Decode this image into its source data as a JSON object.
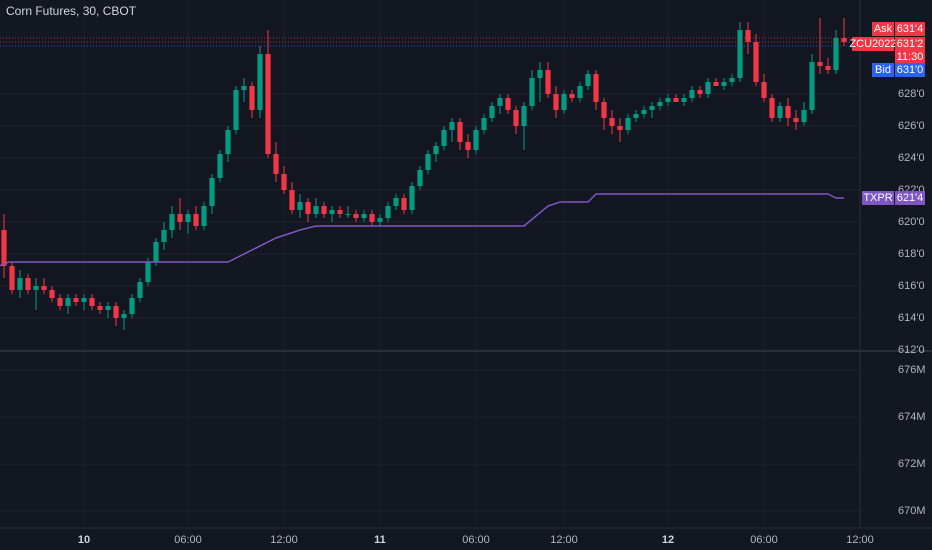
{
  "chart_data": [
    {
      "type": "candlestick",
      "title": "Corn Futures, 30, CBOT",
      "up_color": "#089981",
      "down_color": "#f23645",
      "open": [
        619.5,
        617.25,
        615.75,
        616.5,
        615.75,
        616,
        615.75,
        615.25,
        614.75,
        615.25,
        615,
        615.25,
        614.75,
        614.5,
        614.75,
        614,
        614.25,
        615.25,
        616.25,
        617.5,
        618.75,
        619.5,
        620.5,
        620,
        620.5,
        619.75,
        621,
        622.75,
        624.25,
        625.75,
        628.25,
        628.5,
        627,
        630.5,
        624.25,
        623,
        622,
        620.75,
        621.25,
        620.5,
        621,
        620.5,
        620.75,
        620.5,
        620.5,
        620.25,
        620.5,
        620,
        620.25,
        621,
        621.5,
        620.75,
        622.25,
        623.25,
        624.25,
        624.75,
        625.75,
        626.25,
        625,
        624.5,
        625.75,
        626.5,
        627.25,
        627.75,
        627,
        626,
        627.25,
        629,
        629.5,
        628,
        627,
        628,
        627.75,
        628.5,
        629.25,
        627.5,
        626.5,
        626,
        625.75,
        626.5,
        626.75,
        627,
        627.25,
        627.5,
        627.75,
        627.5,
        627.75,
        628.25,
        628,
        628.75,
        628.5,
        628.75,
        629,
        632,
        631.25,
        628.75,
        627.75,
        626.5,
        627.25,
        626.5,
        626.25,
        627,
        630,
        629.75,
        629.5,
        631.5
      ],
      "high": [
        620.5,
        617.5,
        617,
        616.75,
        616.5,
        616.5,
        616,
        615.5,
        615.5,
        615.5,
        615.5,
        615.5,
        615,
        615,
        615,
        614.5,
        615.5,
        616.5,
        617.75,
        619,
        620,
        621,
        621.5,
        620.75,
        621,
        621.25,
        623,
        624.5,
        626,
        628.5,
        629,
        628.75,
        631,
        632,
        625,
        623.5,
        622.5,
        621.75,
        621.5,
        621.5,
        621.25,
        621,
        621,
        621,
        620.75,
        620.75,
        620.75,
        620.5,
        621.25,
        621.75,
        621.75,
        622.5,
        623.5,
        624.5,
        625,
        626,
        626.5,
        626.5,
        625.5,
        626,
        626.75,
        627.5,
        628,
        628,
        627.25,
        627.5,
        629.5,
        630,
        630,
        628.5,
        628.25,
        628.25,
        628.75,
        629.5,
        629.5,
        627.75,
        627,
        626.5,
        626.75,
        627,
        627.25,
        627.5,
        627.75,
        628,
        628,
        628,
        628.5,
        628.5,
        629,
        629,
        629,
        629.25,
        632.5,
        632.5,
        631.75,
        629.25,
        628,
        627.5,
        627.75,
        627,
        627.5,
        630.5,
        632.75,
        630.25,
        632,
        632.75
      ],
      "low": [
        616.5,
        615.5,
        615.25,
        615.5,
        614.5,
        615.5,
        615,
        614.5,
        614.25,
        614.75,
        614.5,
        614.5,
        614.25,
        614,
        613.5,
        613.25,
        614,
        615,
        616,
        617.25,
        618.25,
        619,
        619.5,
        619.25,
        619.5,
        619.5,
        620.5,
        622.5,
        623.75,
        625.5,
        627.5,
        626.5,
        626.5,
        624,
        622.5,
        621.75,
        620.5,
        620.25,
        620,
        620.25,
        620.25,
        620,
        620.25,
        620.25,
        620,
        620,
        619.75,
        619.75,
        620,
        620.75,
        620.5,
        620.5,
        622,
        623,
        623.75,
        624.5,
        625,
        624.5,
        624,
        624.25,
        625.5,
        626.25,
        626.75,
        626.75,
        625.5,
        624.5,
        627,
        627.5,
        627.75,
        626.5,
        626.75,
        627.5,
        627.5,
        628.25,
        627,
        625.75,
        625.5,
        625,
        625.5,
        626.25,
        626.5,
        626.5,
        627,
        627.25,
        627.5,
        627.25,
        627.5,
        627.75,
        627.75,
        628.5,
        628.25,
        628.5,
        628.75,
        630.5,
        628.5,
        627.5,
        626.25,
        626.25,
        626,
        625.75,
        626,
        626.75,
        629.25,
        629.25,
        629.25,
        631
      ],
      "close": [
        617.25,
        615.75,
        616.5,
        615.75,
        616,
        615.75,
        615.25,
        614.75,
        615.25,
        615,
        615.25,
        614.75,
        614.5,
        614.75,
        614,
        614.25,
        615.25,
        616.25,
        617.5,
        618.75,
        619.5,
        620.5,
        620,
        620.5,
        619.75,
        621,
        622.75,
        624.25,
        625.75,
        628.25,
        628.5,
        627,
        630.5,
        624.25,
        623,
        622,
        620.75,
        621.25,
        620.5,
        621,
        620.5,
        620.75,
        620.5,
        620.5,
        620.25,
        620.5,
        620,
        620.25,
        621,
        621.5,
        620.75,
        622.25,
        623.25,
        624.25,
        624.75,
        625.75,
        626.25,
        625,
        624.5,
        625.75,
        626.5,
        627.25,
        627.75,
        627,
        626,
        627.25,
        629,
        629.5,
        628,
        627,
        628,
        627.75,
        628.5,
        629.25,
        627.5,
        626.5,
        626,
        625.75,
        626.5,
        626.75,
        627,
        627.25,
        627.5,
        627.75,
        627.5,
        627.75,
        628.25,
        628,
        628.75,
        628.5,
        628.75,
        629,
        632,
        631.25,
        628.75,
        627.75,
        626.5,
        627.25,
        626.5,
        626.25,
        627,
        630,
        629.75,
        629.5,
        631.5,
        631.25
      ],
      "series": [
        {
          "name": "TXPR",
          "color": "#7e57c2",
          "x": [
            -0.6,
            0.6,
            28,
            31,
            34,
            37,
            39,
            65,
            68,
            69.5,
            71.5,
            73,
            74,
            103,
            104,
            105
          ],
          "values": [
            617.25,
            617.5,
            617.5,
            618.25,
            619,
            619.5,
            619.75,
            619.75,
            621,
            621.25,
            621.25,
            621.25,
            621.75,
            621.75,
            621.5,
            621.5
          ],
          "value_labels": [
            null,
            null,
            null,
            null,
            null,
            null,
            null,
            null,
            null,
            null,
            null,
            null,
            null,
            null,
            null,
            "621'4"
          ]
        }
      ],
      "price_labels": [
        {
          "name": "Ask",
          "value": 631.5,
          "label": "631'4",
          "color": "#f23645"
        },
        {
          "name": "ZCU2022",
          "value": 631.25,
          "label": "631'2",
          "countdown": "11:30",
          "color": "#f23645"
        },
        {
          "name": "Bid",
          "value": 631,
          "label": "631'0",
          "color": "#2962ff"
        }
      ],
      "xlim": [
        -0.5,
        107
      ],
      "xticks": [
        {
          "value": 10,
          "label": "10"
        },
        {
          "value": 23,
          "label": "06:00"
        },
        {
          "value": 35,
          "label": "12:00"
        },
        {
          "value": 47,
          "label": "11"
        },
        {
          "value": 59,
          "label": "06:00"
        },
        {
          "value": 70,
          "label": "12:00"
        },
        {
          "value": 83,
          "label": "12"
        },
        {
          "value": 95,
          "label": "06:00"
        },
        {
          "value": 107,
          "label": "12:00"
        }
      ],
      "ylim": [
        612,
        633.875
      ],
      "yticks": [
        {
          "value": 612,
          "label": "612'0"
        },
        {
          "value": 614,
          "label": "614'0"
        },
        {
          "value": 616,
          "label": "616'0"
        },
        {
          "value": 618,
          "label": "618'0"
        },
        {
          "value": 620,
          "label": "620'0"
        },
        {
          "value": 622,
          "label": "622'0"
        },
        {
          "value": 624,
          "label": "624'0"
        },
        {
          "value": 626,
          "label": "626'0"
        },
        {
          "value": 628,
          "label": "628'0"
        }
      ],
      "grid": true
    },
    {
      "type": "line",
      "ylim": [
        669280000,
        676770000
      ],
      "yticks": [
        {
          "value": 670000000,
          "label": "670M"
        },
        {
          "value": 672000000,
          "label": "672M"
        },
        {
          "value": 674000000,
          "label": "674M"
        },
        {
          "value": 676000000,
          "label": "676M"
        }
      ],
      "grid": true
    }
  ]
}
